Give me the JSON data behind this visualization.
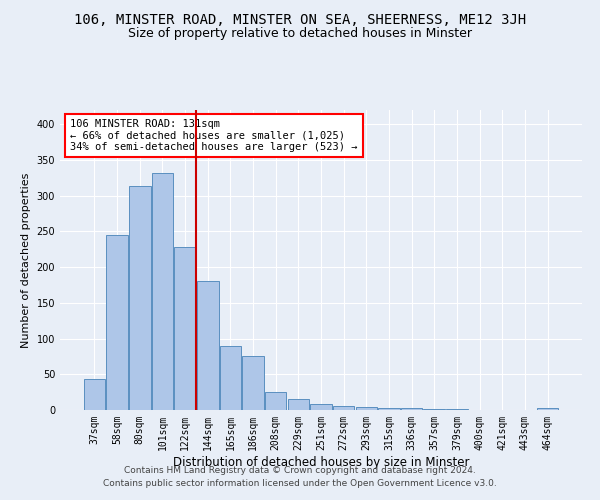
{
  "title1": "106, MINSTER ROAD, MINSTER ON SEA, SHEERNESS, ME12 3JH",
  "title2": "Size of property relative to detached houses in Minster",
  "xlabel": "Distribution of detached houses by size in Minster",
  "ylabel": "Number of detached properties",
  "footer1": "Contains HM Land Registry data © Crown copyright and database right 2024.",
  "footer2": "Contains public sector information licensed under the Open Government Licence v3.0.",
  "annotation_line1": "106 MINSTER ROAD: 131sqm",
  "annotation_line2": "← 66% of detached houses are smaller (1,025)",
  "annotation_line3": "34% of semi-detached houses are larger (523) →",
  "bar_color": "#aec6e8",
  "bar_edge_color": "#5a8fc0",
  "vline_color": "#cc0000",
  "vline_x": 4.5,
  "categories": [
    "37sqm",
    "58sqm",
    "80sqm",
    "101sqm",
    "122sqm",
    "144sqm",
    "165sqm",
    "186sqm",
    "208sqm",
    "229sqm",
    "251sqm",
    "272sqm",
    "293sqm",
    "315sqm",
    "336sqm",
    "357sqm",
    "379sqm",
    "400sqm",
    "421sqm",
    "443sqm",
    "464sqm"
  ],
  "values": [
    43,
    245,
    313,
    332,
    228,
    180,
    90,
    75,
    25,
    15,
    9,
    5,
    4,
    3,
    3,
    1,
    1,
    0,
    0,
    0,
    3
  ],
  "ylim": [
    0,
    420
  ],
  "yticks": [
    0,
    50,
    100,
    150,
    200,
    250,
    300,
    350,
    400
  ],
  "bg_color": "#e8eef7",
  "plot_bg_color": "#e8eef7",
  "title1_fontsize": 10,
  "title2_fontsize": 9,
  "annotation_fontsize": 7.5,
  "tick_fontsize": 7,
  "xlabel_fontsize": 8.5,
  "ylabel_fontsize": 8,
  "footer_fontsize": 6.5
}
